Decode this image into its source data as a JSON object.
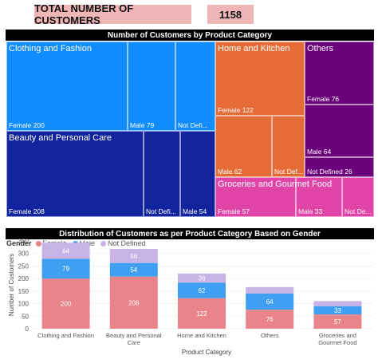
{
  "kpi": {
    "label": "TOTAL NUMBER OF CUSTOMERS",
    "value": "1158"
  },
  "colors": {
    "clothing": "#118dff",
    "beauty": "#12239e",
    "home": "#e66c37",
    "others": "#6b007b",
    "groceries": "#e044a7",
    "female": "#e8848a",
    "male": "#3f9ff0",
    "not_defined": "#c8b3e6"
  },
  "chart_data": [
    {
      "type": "treemap",
      "title": "Number of Customers by Product Category",
      "categories": [
        {
          "name": "Clothing and Fashion",
          "leaves": [
            {
              "label": "Female 200",
              "value": 200
            },
            {
              "label": "Male 79",
              "value": 79
            },
            {
              "label": "Not Defi...",
              "value": 64
            }
          ]
        },
        {
          "name": "Beauty and Personal Care",
          "leaves": [
            {
              "label": "Female 208",
              "value": 208
            },
            {
              "label": "Not Defi...",
              "value": 56
            },
            {
              "label": "Male 54",
              "value": 54
            }
          ]
        },
        {
          "name": "Home and Kitchen",
          "leaves": [
            {
              "label": "Female 122",
              "value": 122
            },
            {
              "label": "Male 62",
              "value": 62
            },
            {
              "label": "Not Def...",
              "value": 36
            }
          ]
        },
        {
          "name": "Others",
          "leaves": [
            {
              "label": "Female 76",
              "value": 76
            },
            {
              "label": "Male 64",
              "value": 64
            },
            {
              "label": "Not Defined 26",
              "value": 26
            }
          ]
        },
        {
          "name": "Groceries and Gourmet Food",
          "leaves": [
            {
              "label": "Female 57",
              "value": 57
            },
            {
              "label": "Male 33",
              "value": 33
            },
            {
              "label": "Not De...",
              "value": 20
            }
          ]
        }
      ]
    },
    {
      "type": "bar",
      "stacked": true,
      "title": "Distribution of Customers as per Product Category Based on Gender",
      "legend_title": "Gender",
      "legend_position": "top-left",
      "xlabel": "Product Category",
      "ylabel": "Number of Customers",
      "ylim": [
        0,
        350
      ],
      "yticks": [
        "0",
        "50",
        "100",
        "150",
        "200",
        "250",
        "300",
        "350"
      ],
      "categories": [
        "Clothing and Fashion",
        "Beauty and Personal Care",
        "Home and Kitchen",
        "Others",
        "Groceries and Gourmet Food"
      ],
      "series": [
        {
          "name": "Female",
          "values": [
            200,
            208,
            122,
            76,
            57
          ]
        },
        {
          "name": "Male",
          "values": [
            79,
            54,
            62,
            64,
            33
          ]
        },
        {
          "name": "Not Defined",
          "values": [
            64,
            56,
            36,
            26,
            20
          ]
        }
      ],
      "data_labels": [
        [
          "200",
          "208",
          "122",
          "76",
          "57"
        ],
        [
          "79",
          "54",
          "62",
          "64",
          "33"
        ],
        [
          "64",
          "56",
          "36",
          "",
          ""
        ]
      ]
    }
  ]
}
